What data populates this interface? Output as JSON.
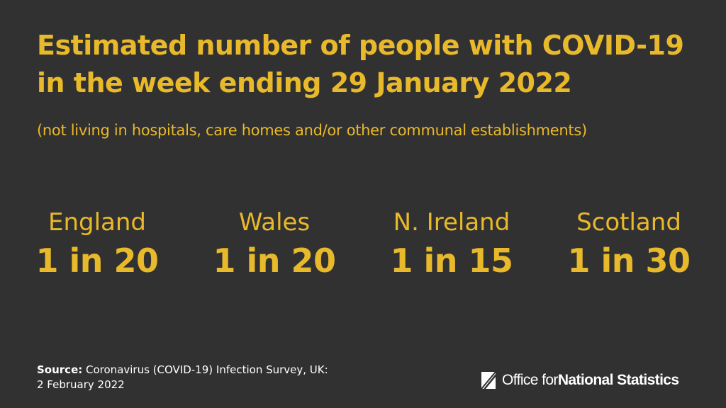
{
  "title": "Estimated number of people with COVID-19 in the week ending 29 January 2022",
  "subtitle": "(not living in hospitals, care homes and/or other communal establishments)",
  "stats": [
    {
      "nation": "England",
      "value": "1 in 20"
    },
    {
      "nation": "Wales",
      "value": "1 in 20"
    },
    {
      "nation": "N. Ireland",
      "value": "1 in 15"
    },
    {
      "nation": "Scotland",
      "value": "1 in 30"
    }
  ],
  "source": {
    "label": "Source:",
    "text": " Coronavirus (COVID-19) Infection Survey, UK:",
    "date": "2 February 2022"
  },
  "logo": {
    "icon": "ons-logo-icon",
    "prefix": "Office for ",
    "strong": "National Statistics"
  },
  "colors": {
    "background": "#323132",
    "accent": "#e8b92a",
    "text": "#ffffff"
  }
}
